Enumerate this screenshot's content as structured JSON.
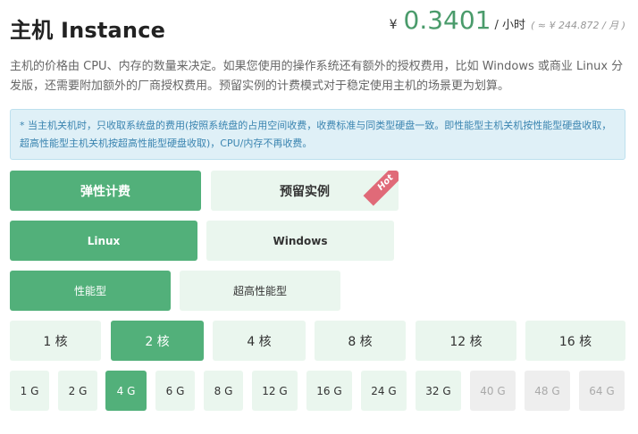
{
  "header": {
    "title": "主机 Instance",
    "currency": "¥",
    "price": "0.3401",
    "unit": "/ 小时",
    "monthly": "( ≈ ¥ 244.872 / 月 )"
  },
  "description": "主机的价格由 CPU、内存的数量来决定。如果您使用的操作系统还有额外的授权费用，比如 Windows 或商业 Linux 分发版，还需要附加额外的厂商授权费用。预留实例的计费模式对于稳定使用主机的场景更为划算。",
  "notice": "* 当主机关机时，只收取系统盘的费用(按照系统盘的占用空间收费，收费标准与同类型硬盘一致。即性能型主机关机按性能型硬盘收取，超高性能型主机关机按超高性能型硬盘收取)，CPU/内存不再收费。",
  "billing": {
    "options": [
      "弹性计费",
      "预留实例"
    ],
    "selected": "弹性计费",
    "hot_badge": "Hot"
  },
  "os": {
    "options": [
      "Linux",
      "Windows"
    ],
    "selected": "Linux"
  },
  "instance_type": {
    "options": [
      "性能型",
      "超高性能型"
    ],
    "selected": "性能型"
  },
  "cpu": {
    "options": [
      "1 核",
      "2 核",
      "4 核",
      "8 核",
      "12 核",
      "16 核"
    ],
    "selected": "2 核"
  },
  "memory": {
    "options": [
      "1 G",
      "2 G",
      "4 G",
      "6 G",
      "8 G",
      "12 G",
      "16 G",
      "24 G",
      "32 G",
      "40 G",
      "48 G",
      "64 G"
    ],
    "selected": "4 G",
    "disabled": [
      "40 G",
      "48 G",
      "64 G"
    ]
  },
  "colors": {
    "accent": "#52b07a",
    "accent_light": "#eaf6ee",
    "price_green": "#4a9b6b",
    "notice_bg": "#dff0f7",
    "notice_text": "#3a84b0",
    "hot_badge": "#e06a78",
    "disabled_bg": "#eeeeee"
  }
}
